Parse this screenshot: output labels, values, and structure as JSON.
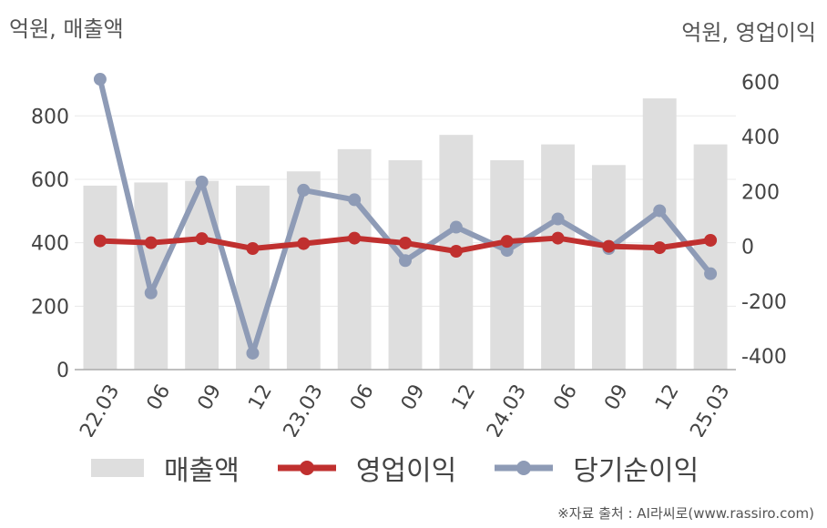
{
  "units": {
    "left": "억원, 매출액",
    "right": "억원, 영업이익"
  },
  "source": "※자료 출처 : AI라씨로(www.rassiro.com)",
  "colors": {
    "bar": "#dedede",
    "operating": "#c0302f",
    "net": "#8e9bb6",
    "axis": "#aaaaaa",
    "grid": "#e8e8e8"
  },
  "chart_data": {
    "type": "bar+line",
    "categories": [
      "22.03",
      "06",
      "09",
      "12",
      "23.03",
      "06",
      "09",
      "12",
      "24.03",
      "06",
      "09",
      "12",
      "25.03"
    ],
    "y_left": {
      "ylim": [
        0,
        950
      ],
      "ticks": [
        0,
        200,
        400,
        600,
        800
      ]
    },
    "y_right": {
      "ylim": [
        -450,
        650
      ],
      "ticks": [
        -400,
        -200,
        0,
        200,
        400,
        600
      ]
    },
    "series": [
      {
        "name": "매출액",
        "type": "bar",
        "axis": "left",
        "values": [
          580,
          590,
          595,
          580,
          625,
          695,
          660,
          740,
          660,
          710,
          645,
          855,
          710
        ]
      },
      {
        "name": "영업이익",
        "type": "line",
        "axis": "right",
        "values": [
          20,
          13,
          28,
          -8,
          10,
          30,
          12,
          -18,
          18,
          30,
          0,
          -5,
          22
        ]
      },
      {
        "name": "당기순이익",
        "type": "line",
        "axis": "right",
        "values": [
          610,
          -170,
          235,
          -390,
          205,
          170,
          -52,
          70,
          -15,
          100,
          -8,
          130,
          -100
        ]
      }
    ],
    "legend_position": "bottom",
    "grid": true
  }
}
